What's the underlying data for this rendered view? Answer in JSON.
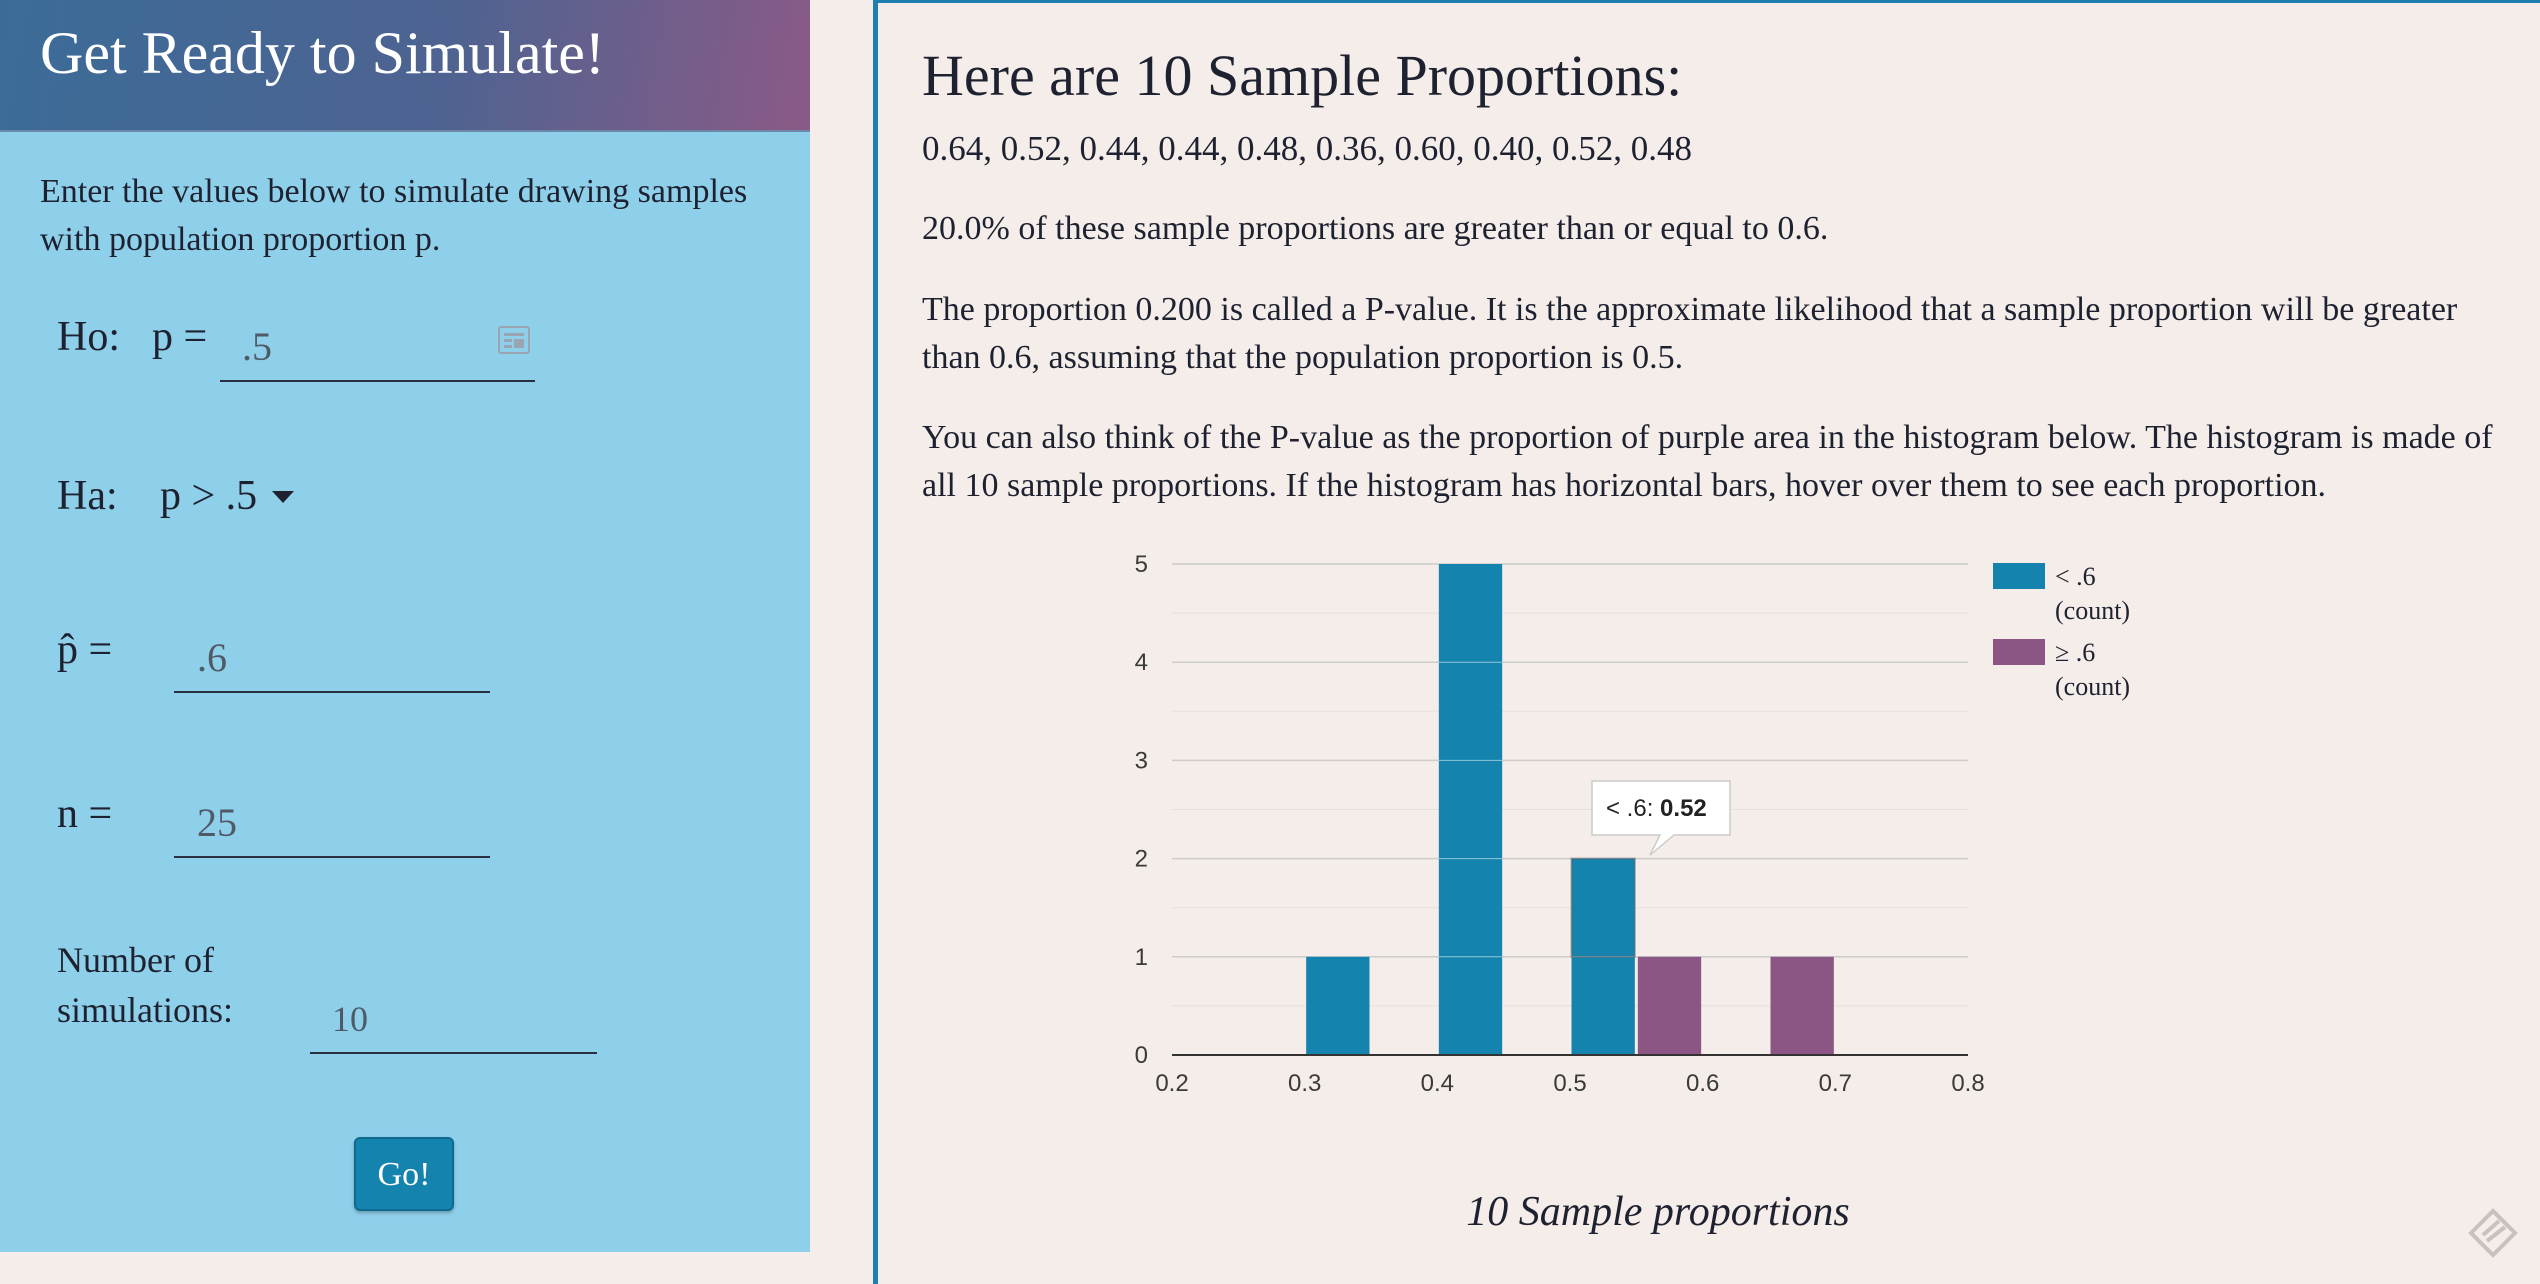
{
  "left": {
    "title": "Get Ready to Simulate!",
    "intro": "Enter the values below to simulate drawing samples with population proportion p.",
    "ho_label": "Ho:",
    "ho_p_label": "p =",
    "ho_value": ".5",
    "ha_label": "Ha:",
    "ha_selected": "p > .5",
    "phat_label": "p̂ =",
    "phat_value": ".6",
    "n_label": "n =",
    "n_value": "25",
    "sims_label_1": "Number of",
    "sims_label_2": "simulations:",
    "sims_value": "10",
    "go_label": "Go!"
  },
  "right": {
    "heading": "Here are 10 Sample Proportions:",
    "samples_text": "0.64, 0.52, 0.44, 0.44, 0.48, 0.36, 0.60, 0.40, 0.52, 0.48",
    "summary": "20.0% of these sample proportions are greater than or equal to 0.6.",
    "pvalue_text": "The proportion 0.200 is called a P-value. It is the approximate likelihood that a sample proportion will be greater than 0.6, assuming that the population proportion is 0.5.",
    "histogram_text": "You can also think of the P-value as the proportion of purple area in the histogram below. The histogram is made of all 10 sample proportions. If the histogram has horizontal bars, hover over them to see each proportion."
  },
  "tooltip": {
    "series": "< .6:",
    "value": "0.52"
  },
  "colors": {
    "blue": "#1483ad",
    "purple": "#8b5683"
  },
  "chart_data": {
    "type": "bar",
    "xlabel": "10 Sample proportions",
    "xlim": [
      0.2,
      0.8
    ],
    "ylim": [
      0,
      5
    ],
    "x_ticks": [
      "0.2",
      "0.3",
      "0.4",
      "0.5",
      "0.6",
      "0.7",
      "0.8"
    ],
    "y_ticks": [
      "0",
      "1",
      "2",
      "3",
      "4",
      "5"
    ],
    "legend_position": "right",
    "series": [
      {
        "name": "< .6 (count)",
        "legend_line1": "< .6",
        "legend_line2": "(count)",
        "color": "#1483ad",
        "bins": [
          {
            "from": 0.3,
            "to": 0.35,
            "count": 1
          },
          {
            "from": 0.4,
            "to": 0.45,
            "count": 5
          },
          {
            "from": 0.5,
            "to": 0.55,
            "count": 2
          }
        ]
      },
      {
        "name": "≥ .6 (count)",
        "legend_line1": "≥ .6",
        "legend_line2": "(count)",
        "color": "#8b5683",
        "bins": [
          {
            "from": 0.55,
            "to": 0.6,
            "count": 1
          },
          {
            "from": 0.65,
            "to": 0.7,
            "count": 1
          }
        ]
      }
    ]
  }
}
